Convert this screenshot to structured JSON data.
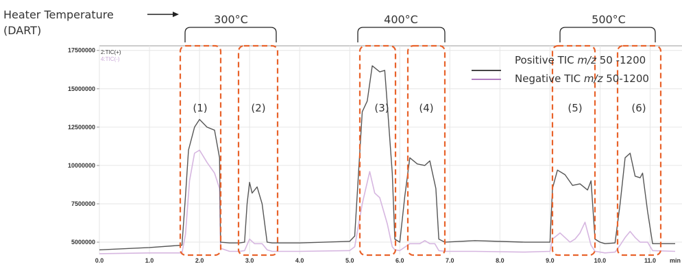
{
  "header": {
    "heater_label_line1": "Heater Temperature",
    "heater_label_line2": "(DART)"
  },
  "temperatures": [
    "300°C",
    "400°C",
    "500°C"
  ],
  "regions": [
    "(1)",
    "(2)",
    "(3)",
    "(4)",
    "(5)",
    "(6)"
  ],
  "legend": {
    "positive": {
      "prefix": "Positive TIC ",
      "italic": "m/z",
      "suffix": " 50 -1200",
      "color": "#444444"
    },
    "negative": {
      "prefix": "Negative TIC ",
      "italic": "m/z",
      "suffix": " 50-1200",
      "color": "#b07cc0"
    }
  },
  "trace_labels": {
    "positive": "2:TIC(+)",
    "negative": "4:TIC(-)"
  },
  "colors": {
    "positive": "#555555",
    "negative": "#d6b6e0",
    "highlight_box": "#e8622a",
    "grid": "#e6e6e6"
  },
  "chart_data": {
    "type": "line",
    "xlabel": "min",
    "xlim": [
      0,
      11.5
    ],
    "ylim": [
      4200000,
      17800000
    ],
    "x_ticks": [
      "0.0",
      "1.0",
      "2.0",
      "3.0",
      "4.0",
      "5.0",
      "6.0",
      "7.0",
      "8.0",
      "9.0",
      "10.0",
      "11.0"
    ],
    "y_ticks": [
      "5000000",
      "7500000",
      "10000000",
      "12500000",
      "15000000",
      "17500000"
    ],
    "series": [
      {
        "name": "2:TIC(+)",
        "x": [
          0,
          1,
          1.65,
          1.72,
          1.78,
          1.9,
          2.0,
          2.15,
          2.3,
          2.4,
          2.42,
          2.6,
          2.8,
          2.9,
          2.95,
          3.0,
          3.05,
          3.15,
          3.25,
          3.35,
          3.45,
          3.6,
          4.0,
          5.0,
          5.1,
          5.25,
          5.35,
          5.45,
          5.6,
          5.7,
          5.75,
          5.85,
          5.9,
          6.0,
          6.1,
          6.2,
          6.35,
          6.5,
          6.6,
          6.72,
          6.78,
          6.9,
          7.5,
          8.5,
          9.0,
          9.05,
          9.15,
          9.3,
          9.45,
          9.6,
          9.75,
          9.82,
          9.9,
          10.0,
          10.1,
          10.3,
          10.4,
          10.5,
          10.6,
          10.7,
          10.8,
          10.85,
          10.95,
          11.05,
          11.5
        ],
        "y": [
          4500000,
          4650000,
          4800000,
          8000000,
          11000000,
          12500000,
          13000000,
          12500000,
          12300000,
          10500000,
          5000000,
          4950000,
          4950000,
          5000000,
          7500000,
          8900000,
          8200000,
          8600000,
          7500000,
          5000000,
          4950000,
          4950000,
          4950000,
          5050000,
          5400000,
          13500000,
          14200000,
          16500000,
          16100000,
          16200000,
          14000000,
          9500000,
          5200000,
          5000000,
          8000000,
          10500000,
          10100000,
          10000000,
          10300000,
          8500000,
          5200000,
          5000000,
          5100000,
          5000000,
          5000000,
          8500000,
          9700000,
          9400000,
          8700000,
          8800000,
          8400000,
          9000000,
          5200000,
          5000000,
          4900000,
          4950000,
          7500000,
          10500000,
          10800000,
          9300000,
          9200000,
          9500000,
          7000000,
          4900000,
          4900000
        ]
      },
      {
        "name": "4:TIC(-)",
        "x": [
          0,
          1,
          1.65,
          1.72,
          1.8,
          1.9,
          2.0,
          2.15,
          2.3,
          2.4,
          2.42,
          2.6,
          2.8,
          2.9,
          3.0,
          3.1,
          3.25,
          3.35,
          3.45,
          3.6,
          4.0,
          5.0,
          5.1,
          5.25,
          5.4,
          5.5,
          5.6,
          5.75,
          5.85,
          5.9,
          6.0,
          6.2,
          6.4,
          6.5,
          6.6,
          6.7,
          6.78,
          6.9,
          7.5,
          8.5,
          9.0,
          9.05,
          9.2,
          9.4,
          9.5,
          9.6,
          9.7,
          9.82,
          9.9,
          10.0,
          10.1,
          10.3,
          10.4,
          10.5,
          10.6,
          10.7,
          10.8,
          10.95,
          11.05,
          11.5
        ],
        "y": [
          4250000,
          4300000,
          4300000,
          5500000,
          9000000,
          10800000,
          11000000,
          10200000,
          9500000,
          8500000,
          4600000,
          4400000,
          4400000,
          4450000,
          5200000,
          4900000,
          4900000,
          4500000,
          4400000,
          4400000,
          4400000,
          4450000,
          4700000,
          7500000,
          9600000,
          8200000,
          7900000,
          6200000,
          4700000,
          4500000,
          4450000,
          4900000,
          4900000,
          5100000,
          4900000,
          4900000,
          4450000,
          4400000,
          4400000,
          4350000,
          4400000,
          5200000,
          5600000,
          5000000,
          5200000,
          5600000,
          6300000,
          4800000,
          4400000,
          4350000,
          4300000,
          4350000,
          4800000,
          5300000,
          5700000,
          5300000,
          5000000,
          5000000,
          4450000,
          4400000
        ]
      }
    ],
    "grid": true
  }
}
